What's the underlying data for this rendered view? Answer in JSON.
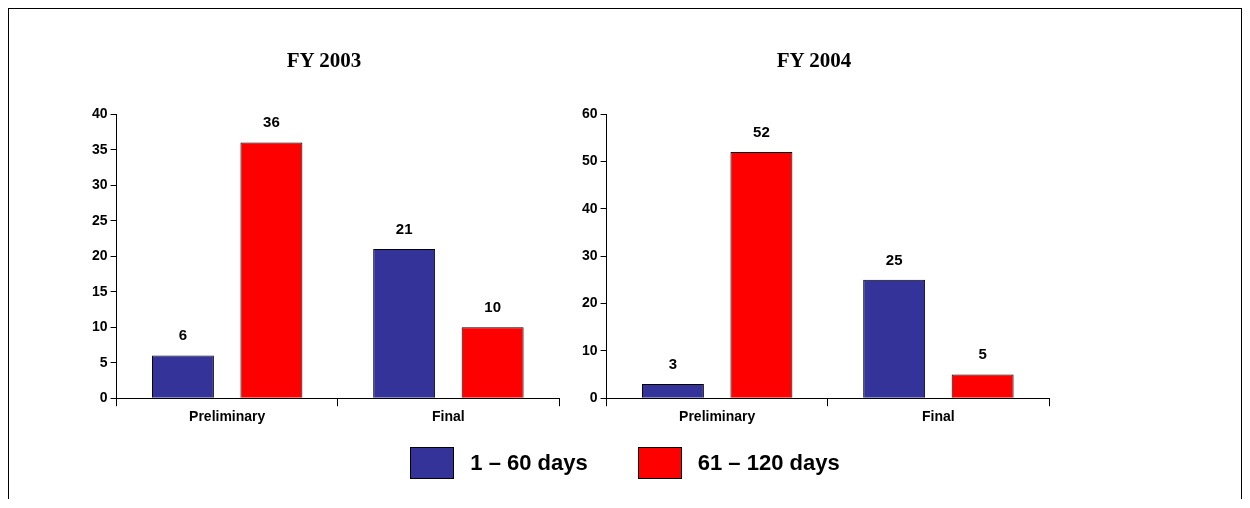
{
  "chart_data": [
    {
      "type": "bar",
      "title": "FY 2003",
      "categories": [
        "Preliminary",
        "Final"
      ],
      "series": [
        {
          "name": "1 – 60 days",
          "color": "#333399",
          "values": [
            6,
            21
          ]
        },
        {
          "name": "61 – 120 days",
          "color": "#ff0000",
          "values": [
            36,
            10
          ]
        }
      ],
      "ylim": [
        0,
        40
      ],
      "yticks": [
        0,
        5,
        10,
        15,
        20,
        25,
        30,
        35,
        40
      ],
      "grid": false,
      "data_labels": true,
      "legend": "bottom"
    },
    {
      "type": "bar",
      "title": "FY 2004",
      "categories": [
        "Preliminary",
        "Final"
      ],
      "series": [
        {
          "name": "1 – 60 days",
          "color": "#333399",
          "values": [
            3,
            25
          ]
        },
        {
          "name": "61 – 120 days",
          "color": "#ff0000",
          "values": [
            52,
            5
          ]
        }
      ],
      "ylim": [
        0,
        60
      ],
      "yticks": [
        0,
        10,
        20,
        30,
        40,
        50,
        60
      ],
      "grid": false,
      "data_labels": true,
      "legend": "bottom"
    }
  ]
}
